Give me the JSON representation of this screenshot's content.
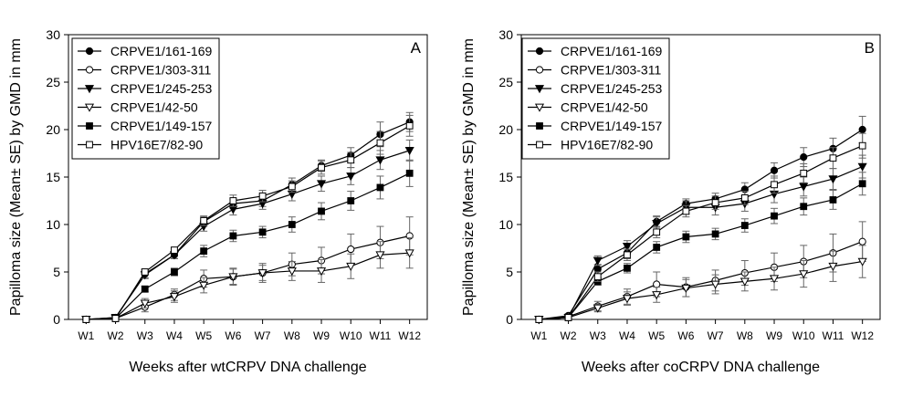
{
  "chart_data": [
    {
      "type": "line",
      "panel_label": "A",
      "xlabel": "Weeks after wtCRPV DNA challenge",
      "ylabel": "Papilloma size (Mean± SE) by GMD in mm",
      "categories": [
        "W1",
        "W2",
        "W3",
        "W4",
        "W5",
        "W6",
        "W7",
        "W8",
        "W9",
        "W10",
        "W11",
        "W12"
      ],
      "ylim": [
        0,
        30
      ],
      "yticks": [
        0,
        5,
        10,
        15,
        20,
        25,
        30
      ],
      "legend_position": "top-left",
      "series": [
        {
          "name": "CRPVE1/161-169",
          "marker": "circle-filled",
          "values": [
            0,
            0.2,
            4.8,
            6.8,
            10.3,
            12.2,
            12.5,
            14.2,
            16.2,
            17.3,
            19.5,
            20.8
          ],
          "errors": [
            0,
            0.1,
            0.4,
            0.4,
            0.5,
            0.5,
            0.6,
            0.7,
            0.6,
            0.8,
            1.3,
            1.0
          ]
        },
        {
          "name": "CRPVE1/303-311",
          "marker": "circle-open",
          "values": [
            0,
            0.1,
            1.3,
            2.6,
            4.3,
            4.5,
            4.9,
            5.8,
            6.2,
            7.4,
            8.1,
            8.8
          ],
          "errors": [
            0,
            0.1,
            0.5,
            0.6,
            0.9,
            0.8,
            0.8,
            1.2,
            1.4,
            1.6,
            1.7,
            2.0
          ]
        },
        {
          "name": "CRPVE1/245-253",
          "marker": "triangle-down-filled",
          "values": [
            0,
            0.2,
            4.7,
            6.8,
            9.8,
            11.6,
            12.2,
            13.2,
            14.3,
            15.1,
            16.8,
            17.8
          ],
          "errors": [
            0,
            0.1,
            0.4,
            0.4,
            0.5,
            0.6,
            0.6,
            0.7,
            0.8,
            0.9,
            1.0,
            1.1
          ]
        },
        {
          "name": "CRPVE1/42-50",
          "marker": "triangle-down-open",
          "values": [
            0,
            0.1,
            1.7,
            2.4,
            3.6,
            4.5,
            4.9,
            5.1,
            5.1,
            5.6,
            6.8,
            7.0
          ],
          "errors": [
            0,
            0.1,
            0.5,
            0.6,
            0.8,
            0.9,
            1.0,
            1.0,
            1.2,
            1.3,
            1.4,
            1.6
          ]
        },
        {
          "name": "CRPVE1/149-157",
          "marker": "square-filled",
          "values": [
            0,
            0.1,
            3.2,
            5.0,
            7.2,
            8.8,
            9.2,
            10.0,
            11.4,
            12.5,
            13.9,
            15.4
          ],
          "errors": [
            0,
            0.1,
            0.3,
            0.4,
            0.6,
            0.6,
            0.6,
            0.8,
            0.9,
            1.0,
            1.2,
            1.4
          ]
        },
        {
          "name": "HPV16E7/82-90",
          "marker": "square-open",
          "values": [
            0,
            0.1,
            5.0,
            7.3,
            10.4,
            12.5,
            13.0,
            14.0,
            16.0,
            16.8,
            18.6,
            20.4
          ],
          "errors": [
            0,
            0.1,
            0.3,
            0.3,
            0.5,
            0.6,
            0.6,
            0.6,
            0.7,
            0.8,
            1.2,
            1.1
          ]
        }
      ]
    },
    {
      "type": "line",
      "panel_label": "B",
      "xlabel": "Weeks after coCRPV DNA challenge",
      "ylabel": "Papilloma size (Mean± SE) by GMD in mm",
      "categories": [
        "W1",
        "W2",
        "W3",
        "W4",
        "W5",
        "W6",
        "W7",
        "W8",
        "W9",
        "W10",
        "W11",
        "W12"
      ],
      "ylim": [
        0,
        30
      ],
      "yticks": [
        0,
        5,
        10,
        15,
        20,
        25,
        30
      ],
      "legend_position": "top-left",
      "series": [
        {
          "name": "CRPVE1/161-169",
          "marker": "circle-filled",
          "values": [
            0,
            0.4,
            5.3,
            7.0,
            10.3,
            12.2,
            12.7,
            13.7,
            15.7,
            17.1,
            18.0,
            20.0
          ],
          "errors": [
            0,
            0.2,
            0.5,
            0.6,
            0.6,
            0.5,
            0.6,
            0.7,
            0.8,
            1.0,
            1.1,
            1.4
          ]
        },
        {
          "name": "CRPVE1/303-311",
          "marker": "circle-open",
          "values": [
            0,
            0.3,
            1.4,
            2.4,
            3.7,
            3.4,
            4.1,
            4.9,
            5.5,
            6.1,
            7.0,
            8.2
          ],
          "errors": [
            0,
            0.2,
            0.5,
            0.8,
            1.3,
            1.0,
            1.1,
            1.3,
            1.5,
            1.7,
            2.0,
            2.1
          ]
        },
        {
          "name": "CRPVE1/245-253",
          "marker": "triangle-down-filled",
          "values": [
            0,
            0.2,
            6.2,
            7.7,
            10.1,
            11.8,
            11.8,
            12.2,
            13.2,
            14.0,
            14.8,
            16.1
          ],
          "errors": [
            0,
            0.1,
            0.5,
            0.6,
            0.7,
            0.7,
            0.8,
            0.8,
            0.9,
            1.0,
            1.1,
            1.2
          ]
        },
        {
          "name": "CRPVE1/42-50",
          "marker": "triangle-down-open",
          "values": [
            0,
            0.2,
            1.2,
            2.2,
            2.6,
            3.3,
            3.7,
            4.0,
            4.3,
            4.8,
            5.6,
            6.1
          ],
          "errors": [
            0,
            0.1,
            0.4,
            0.7,
            0.8,
            0.9,
            1.0,
            1.0,
            1.2,
            1.4,
            1.6,
            1.7
          ]
        },
        {
          "name": "CRPVE1/149-157",
          "marker": "square-filled",
          "values": [
            0,
            0.2,
            4.0,
            5.4,
            7.6,
            8.7,
            9.0,
            9.9,
            10.9,
            11.9,
            12.6,
            14.3
          ],
          "errors": [
            0,
            0.1,
            0.4,
            0.5,
            0.6,
            0.6,
            0.6,
            0.7,
            0.8,
            0.9,
            1.0,
            1.2
          ]
        },
        {
          "name": "HPV16E7/82-90",
          "marker": "square-open",
          "values": [
            0,
            0.2,
            4.5,
            6.8,
            9.2,
            11.4,
            12.3,
            12.8,
            14.2,
            15.4,
            17.0,
            18.3
          ],
          "errors": [
            0,
            0.1,
            0.5,
            0.6,
            0.6,
            0.6,
            0.7,
            0.7,
            0.9,
            1.0,
            1.1,
            1.3
          ]
        }
      ]
    }
  ]
}
